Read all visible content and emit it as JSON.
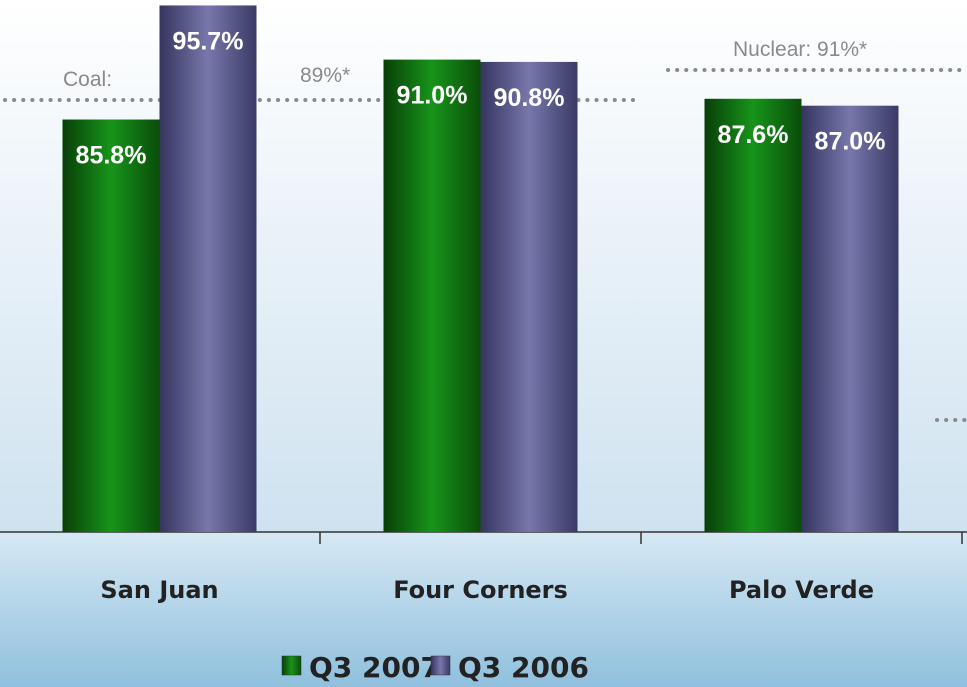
{
  "chart_data": {
    "type": "bar",
    "categories": [
      "San Juan",
      "Four Corners",
      "Palo Verde"
    ],
    "series": [
      {
        "name": "Q3 2007",
        "color": "#17941a",
        "values": [
          85.8,
          91.0,
          87.6
        ],
        "value_labels": [
          "85.8%",
          "91.0%",
          "87.6%"
        ]
      },
      {
        "name": "Q3 2006",
        "color": "#7777ab",
        "values": [
          95.7,
          90.8,
          87.0
        ],
        "value_labels": [
          "95.7%",
          "90.8%",
          "87.0%"
        ]
      }
    ],
    "annotations": [
      "Coal:",
      "89%*",
      "Nuclear: 91%*"
    ],
    "ylim": [
      50,
      96
    ]
  }
}
